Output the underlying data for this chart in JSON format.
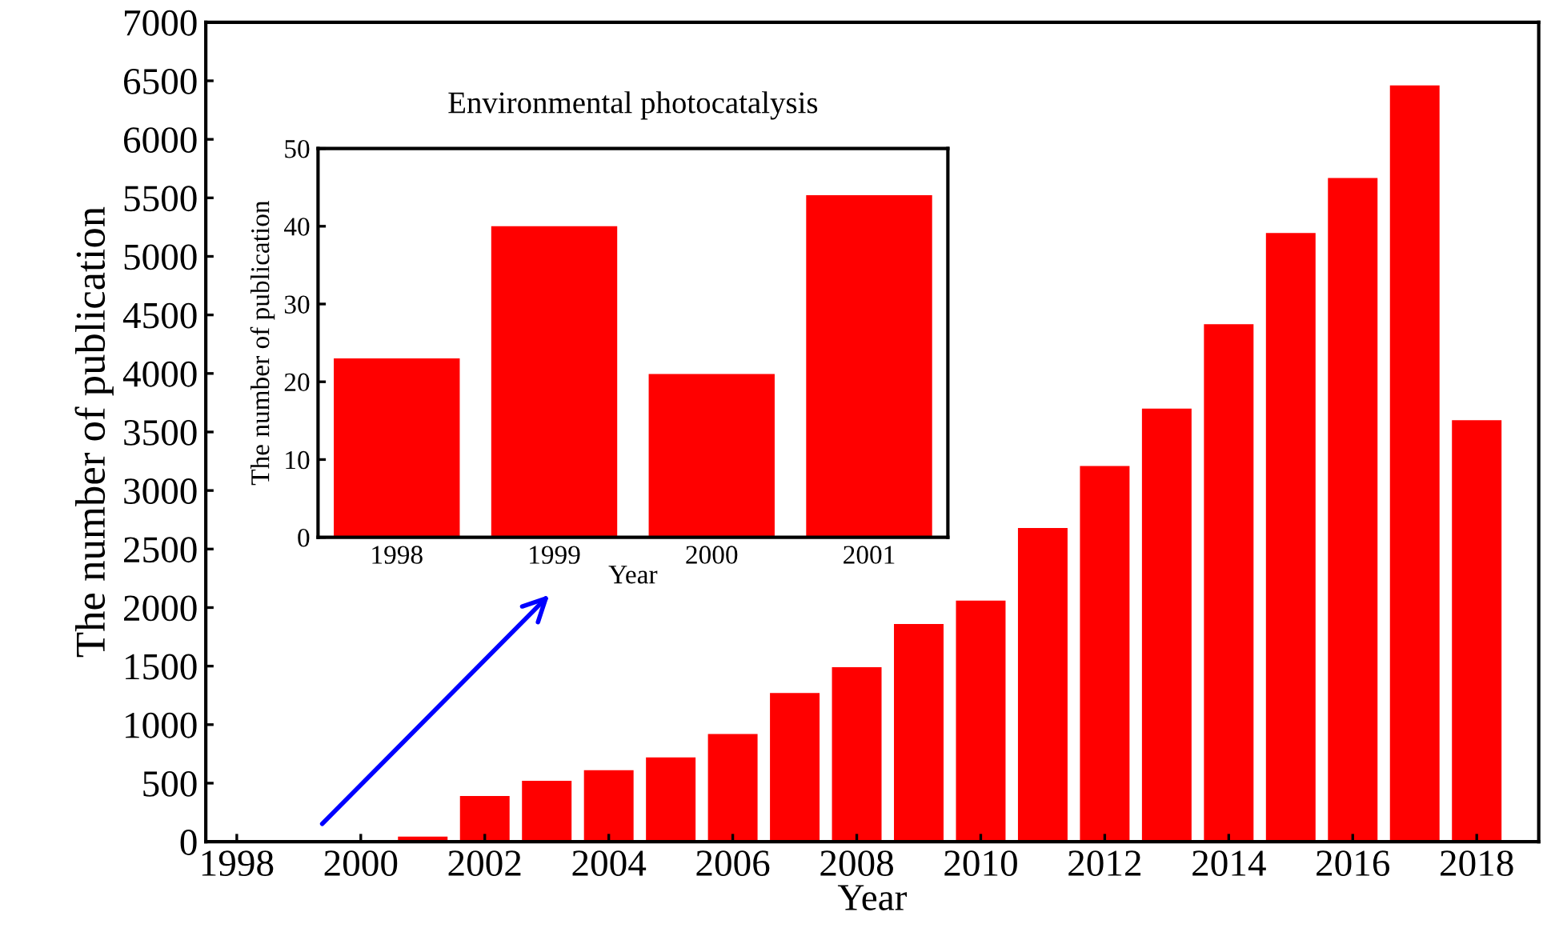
{
  "chart_data": [
    {
      "type": "bar",
      "xlabel": "Year",
      "ylabel": "The number of publication",
      "x": [
        2001,
        2002,
        2003,
        2004,
        2005,
        2006,
        2007,
        2008,
        2009,
        2010,
        2011,
        2012,
        2013,
        2014,
        2015,
        2016,
        2017,
        2018
      ],
      "values": [
        44,
        390,
        520,
        610,
        720,
        920,
        1270,
        1490,
        1860,
        2060,
        2680,
        3210,
        3700,
        4420,
        5200,
        5670,
        6460,
        3600
      ],
      "color": "#ff0000",
      "xlim": [
        1997.5,
        2019
      ],
      "xticks": [
        1998,
        2000,
        2002,
        2004,
        2006,
        2008,
        2010,
        2012,
        2014,
        2016,
        2018
      ],
      "ylim": [
        0,
        7000
      ],
      "yticks": [
        0,
        500,
        1000,
        1500,
        2000,
        2500,
        3000,
        3500,
        4000,
        4500,
        5000,
        5500,
        6000,
        6500,
        7000
      ],
      "grid": false,
      "legend": false
    },
    {
      "type": "bar",
      "title": "Environmental photocatalysis",
      "xlabel": "Year",
      "ylabel": "The number of publication",
      "categories": [
        "1998",
        "1999",
        "2000",
        "2001"
      ],
      "values": [
        23,
        40,
        21,
        44
      ],
      "color": "#ff0000",
      "ylim": [
        0,
        50
      ],
      "yticks": [
        0,
        10,
        20,
        30,
        40,
        50
      ],
      "grid": false,
      "legend": false
    }
  ]
}
